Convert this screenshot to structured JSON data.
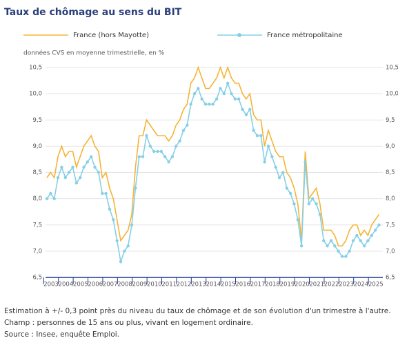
{
  "chart_data": {
    "type": "line",
    "title": "Taux de chômage au sens du BIT",
    "subtitle": "données CVS en moyenne trimestrielle, en %",
    "categories": [
      "2003",
      null,
      null,
      null,
      "2004",
      null,
      null,
      null,
      "2005",
      null,
      null,
      null,
      "2006",
      null,
      null,
      null,
      "2007",
      null,
      null,
      null,
      "2008",
      null,
      null,
      null,
      "2009",
      null,
      null,
      null,
      "2010",
      null,
      null,
      null,
      "2011",
      null,
      null,
      null,
      "2012",
      null,
      null,
      null,
      "2013",
      null,
      null,
      null,
      "2014",
      null,
      null,
      null,
      "2015",
      null,
      null,
      null,
      "2016",
      null,
      null,
      null,
      "2017",
      null,
      null,
      null,
      "2018",
      null,
      null,
      null,
      "2019",
      null,
      null,
      null,
      "2020",
      null,
      null,
      null,
      "2021",
      null,
      null,
      null,
      "2022",
      null,
      null,
      null,
      "2023",
      null,
      null,
      null,
      "2024",
      null,
      null,
      null,
      "2025",
      null,
      null
    ],
    "series": [
      {
        "name": "France (hors Mayotte)",
        "color": "#f5b335",
        "markers": false,
        "values": [
          8.4,
          8.5,
          8.4,
          8.8,
          9.0,
          8.8,
          8.9,
          8.9,
          8.6,
          8.8,
          9.0,
          9.1,
          9.2,
          9.0,
          8.9,
          8.4,
          8.5,
          8.2,
          8.0,
          7.6,
          7.2,
          7.3,
          7.4,
          7.7,
          8.6,
          9.2,
          9.2,
          9.5,
          9.4,
          9.3,
          9.2,
          9.2,
          9.2,
          9.1,
          9.2,
          9.4,
          9.5,
          9.7,
          9.8,
          10.2,
          10.3,
          10.5,
          10.3,
          10.1,
          10.1,
          10.2,
          10.3,
          10.5,
          10.3,
          10.5,
          10.3,
          10.2,
          10.2,
          10.0,
          9.9,
          10.0,
          9.6,
          9.5,
          9.5,
          9.0,
          9.3,
          9.1,
          8.9,
          8.8,
          8.8,
          8.5,
          8.4,
          8.2,
          7.9,
          7.2,
          8.9,
          8.0,
          8.1,
          8.2,
          7.9,
          7.4,
          7.4,
          7.4,
          7.3,
          7.1,
          7.1,
          7.2,
          7.4,
          7.5,
          7.5,
          7.3,
          7.4,
          7.3,
          7.5,
          7.6,
          7.7
        ]
      },
      {
        "name": "France métropolitaine",
        "color": "#86cfe6",
        "markers": true,
        "values": [
          8.0,
          8.1,
          8.0,
          8.4,
          8.6,
          8.4,
          8.5,
          8.6,
          8.3,
          8.4,
          8.6,
          8.7,
          8.8,
          8.6,
          8.5,
          8.1,
          8.1,
          7.8,
          7.6,
          7.2,
          6.8,
          7.0,
          7.1,
          7.5,
          8.2,
          8.8,
          8.8,
          9.2,
          9.0,
          8.9,
          8.9,
          8.9,
          8.8,
          8.7,
          8.8,
          9.0,
          9.1,
          9.3,
          9.4,
          9.8,
          10.0,
          10.1,
          9.9,
          9.8,
          9.8,
          9.8,
          9.9,
          10.1,
          10.0,
          10.2,
          10.0,
          9.9,
          9.9,
          9.7,
          9.6,
          9.7,
          9.3,
          9.2,
          9.2,
          8.7,
          9.0,
          8.8,
          8.6,
          8.4,
          8.5,
          8.2,
          8.1,
          7.9,
          7.6,
          7.1,
          8.7,
          7.9,
          8.0,
          7.9,
          7.7,
          7.2,
          7.1,
          7.2,
          7.1,
          7.0,
          6.9,
          6.9,
          7.0,
          7.2,
          7.3,
          7.2,
          7.1,
          7.2,
          7.3,
          7.4,
          7.5
        ]
      }
    ],
    "ylim": [
      6.5,
      10.5
    ],
    "yticks": [
      {
        "value": 6.5,
        "label": "6,5"
      },
      {
        "value": 7.0,
        "label": "7,0"
      },
      {
        "value": 7.5,
        "label": "7,5"
      },
      {
        "value": 8.0,
        "label": "8,0"
      },
      {
        "value": 8.5,
        "label": "8,5"
      },
      {
        "value": 9.0,
        "label": "9,0"
      },
      {
        "value": 9.5,
        "label": "9,5"
      },
      {
        "value": 10.0,
        "label": "10,0"
      },
      {
        "value": 10.5,
        "label": "10,5"
      }
    ],
    "grid": true,
    "notes": [
      "Estimation à +/- 0,3 point près du niveau du taux de chômage et de son évolution d'un trimestre à l'autre.",
      "Champ : personnes de 15 ans ou plus, vivant en logement ordinaire.",
      "Source : Insee, enquête Emploi."
    ]
  }
}
